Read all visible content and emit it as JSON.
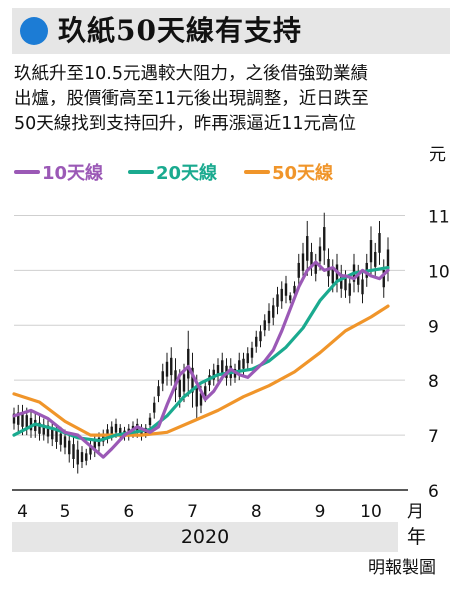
{
  "header": {
    "title": "玖紙50天線有支持",
    "description_lines": [
      "玖紙升至10.5元遇較大阻力，之後借強勁業績",
      "出爐，股價衝高至11元後出現調整，近日跌至",
      "50天線找到支持回升，昨再漲逼近11元高位"
    ]
  },
  "colors": {
    "title_icon": "#1c7cd5",
    "ma10": "#9b59b6",
    "ma20": "#1aaa8f",
    "ma50": "#f0952a",
    "candle": "#1a1a1a",
    "band": "#e6e6e6"
  },
  "footer": {
    "year": "2020",
    "year_unit": "年",
    "credit": "明報製圖"
  },
  "chart_data": {
    "type": "line",
    "y_unit_label": "元",
    "x_unit_label": "月",
    "ylim": [
      6,
      11.5
    ],
    "yticks": [
      6,
      7,
      8,
      9,
      10,
      11
    ],
    "xlim": [
      0,
      92
    ],
    "month_ticks": [
      {
        "label": "4",
        "x": 2
      },
      {
        "label": "5",
        "x": 12
      },
      {
        "label": "6",
        "x": 27
      },
      {
        "label": "7",
        "x": 42
      },
      {
        "label": "8",
        "x": 57
      },
      {
        "label": "9",
        "x": 72
      },
      {
        "label": "10",
        "x": 84
      }
    ],
    "legend": [
      "10天線",
      "20天線",
      "50天線"
    ],
    "series": [
      {
        "name": "10天線",
        "color": "#9b59b6",
        "x": [
          0,
          4,
          8,
          12,
          15,
          18,
          21,
          23,
          26,
          29,
          32,
          34,
          36,
          39,
          41,
          43,
          45,
          47,
          49,
          51,
          53,
          55,
          57,
          59,
          61,
          63,
          65,
          67,
          69,
          71,
          73,
          75,
          77,
          78,
          80,
          82,
          84,
          86,
          88
        ],
        "y": [
          7.35,
          7.45,
          7.3,
          7.05,
          7.0,
          6.8,
          6.6,
          6.75,
          7.0,
          7.15,
          7.05,
          7.15,
          7.55,
          8.1,
          8.25,
          7.95,
          7.65,
          7.8,
          8.05,
          8.2,
          8.1,
          8.05,
          8.2,
          8.35,
          8.55,
          8.9,
          9.3,
          9.7,
          10.0,
          10.15,
          10.0,
          10.05,
          9.9,
          9.9,
          9.85,
          10.0,
          9.9,
          9.85,
          10.0
        ]
      },
      {
        "name": "20天線",
        "color": "#1aaa8f",
        "x": [
          0,
          5,
          10,
          15,
          20,
          24,
          28,
          32,
          36,
          40,
          44,
          48,
          52,
          56,
          60,
          64,
          68,
          72,
          76,
          80,
          84,
          88
        ],
        "y": [
          7.0,
          7.2,
          7.1,
          6.95,
          6.9,
          7.0,
          7.05,
          7.1,
          7.35,
          7.7,
          7.95,
          8.1,
          8.15,
          8.2,
          8.35,
          8.6,
          8.95,
          9.45,
          9.8,
          9.95,
          10.0,
          10.05
        ]
      },
      {
        "name": "50天線",
        "color": "#f0952a",
        "x": [
          0,
          6,
          12,
          18,
          24,
          30,
          36,
          42,
          48,
          54,
          60,
          66,
          72,
          78,
          84,
          88
        ],
        "y": [
          7.75,
          7.6,
          7.25,
          7.0,
          7.0,
          7.0,
          7.05,
          7.25,
          7.45,
          7.7,
          7.9,
          8.15,
          8.5,
          8.9,
          9.15,
          9.35
        ]
      }
    ],
    "price_bars": {
      "x": [
        0,
        1,
        2,
        3,
        4,
        5,
        6,
        7,
        8,
        9,
        10,
        11,
        12,
        13,
        14,
        15,
        16,
        17,
        18,
        19,
        20,
        21,
        22,
        23,
        24,
        25,
        26,
        27,
        28,
        29,
        30,
        31,
        32,
        33,
        34,
        35,
        36,
        37,
        38,
        39,
        40,
        41,
        42,
        43,
        44,
        45,
        46,
        47,
        48,
        49,
        50,
        51,
        52,
        53,
        54,
        55,
        56,
        57,
        58,
        59,
        60,
        61,
        62,
        63,
        64,
        65,
        66,
        67,
        68,
        69,
        70,
        71,
        72,
        73,
        74,
        75,
        76,
        77,
        78,
        79,
        80,
        81,
        82,
        83,
        84,
        85,
        86,
        87,
        88
      ],
      "hi": [
        7.5,
        7.55,
        7.55,
        7.5,
        7.45,
        7.4,
        7.35,
        7.3,
        7.3,
        7.25,
        7.2,
        7.15,
        7.1,
        7.05,
        7.0,
        6.9,
        6.8,
        6.75,
        6.9,
        7.0,
        7.05,
        7.1,
        7.2,
        7.25,
        7.3,
        7.2,
        7.15,
        7.2,
        7.25,
        7.3,
        7.2,
        7.2,
        7.4,
        7.7,
        8.0,
        8.3,
        8.5,
        8.6,
        8.4,
        8.2,
        8.3,
        8.9,
        8.5,
        8.1,
        7.9,
        8.0,
        8.2,
        8.3,
        8.4,
        8.5,
        8.4,
        8.4,
        8.3,
        8.5,
        8.5,
        8.6,
        8.7,
        8.9,
        9.0,
        9.2,
        9.4,
        9.5,
        9.7,
        9.8,
        9.9,
        9.6,
        9.8,
        10.3,
        10.5,
        10.9,
        10.5,
        10.3,
        10.6,
        11.05,
        10.4,
        10.2,
        10.3,
        10.1,
        10.0,
        9.9,
        10.3,
        10.1,
        10.0,
        10.3,
        10.8,
        10.5,
        10.9,
        10.2,
        10.6
      ],
      "lo": [
        7.1,
        7.05,
        7.0,
        7.0,
        6.95,
        6.95,
        6.9,
        6.9,
        6.85,
        6.8,
        6.75,
        6.7,
        6.65,
        6.5,
        6.4,
        6.3,
        6.4,
        6.45,
        6.55,
        6.6,
        6.7,
        6.8,
        6.85,
        6.9,
        6.95,
        6.95,
        6.9,
        6.9,
        6.95,
        6.95,
        6.9,
        6.95,
        7.1,
        7.3,
        7.6,
        7.8,
        7.9,
        7.9,
        7.6,
        7.5,
        7.6,
        7.7,
        7.5,
        7.3,
        7.4,
        7.6,
        7.8,
        7.9,
        7.95,
        8.0,
        7.9,
        7.9,
        7.95,
        8.0,
        8.1,
        8.2,
        8.3,
        8.5,
        8.6,
        8.8,
        8.9,
        9.0,
        9.2,
        9.3,
        9.4,
        9.4,
        9.5,
        9.7,
        9.8,
        9.9,
        9.9,
        9.8,
        10.0,
        10.1,
        9.7,
        9.6,
        9.6,
        9.5,
        9.5,
        9.4,
        9.6,
        9.6,
        9.4,
        9.7,
        9.9,
        9.9,
        10.1,
        9.5,
        9.8
      ]
    }
  }
}
